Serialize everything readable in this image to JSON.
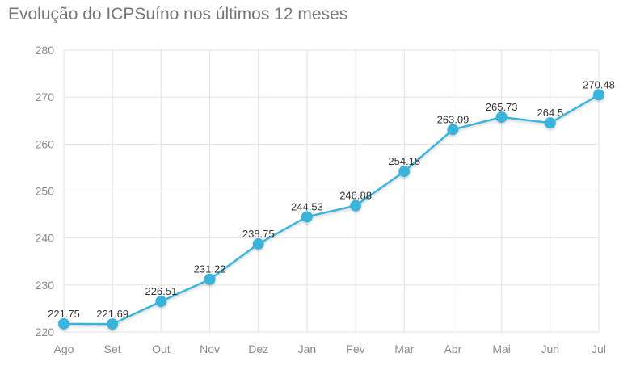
{
  "chart_data": {
    "type": "line",
    "title": "Evolução do ICPSuíno nos últimos 12 meses",
    "xlabel": "",
    "ylabel": "",
    "categories": [
      "Ago",
      "Set",
      "Out",
      "Nov",
      "Dez",
      "Jan",
      "Fev",
      "Mar",
      "Abr",
      "Mai",
      "Jun",
      "Jul"
    ],
    "series": [
      {
        "name": "ICPSuíno",
        "values": [
          221.75,
          221.69,
          226.51,
          231.22,
          238.75,
          244.53,
          246.88,
          254.18,
          263.09,
          265.73,
          264.5,
          270.48
        ],
        "labels": [
          "221.75",
          "221.69",
          "226.51",
          "231.22",
          "238.75",
          "244.53",
          "246.88",
          "254.18",
          "263.09",
          "265.73",
          "264.5",
          "270.48"
        ],
        "color": "#3ab4dc"
      }
    ],
    "ylim": [
      220,
      280
    ],
    "yticks": [
      "220",
      "230",
      "240",
      "250",
      "260",
      "270",
      "280"
    ],
    "grid": true,
    "legend": "none"
  },
  "colors": {
    "line": "#3ab4dc",
    "grid": "#e2e2e2",
    "tick_text": "#8a8a8a",
    "title_text": "#777777"
  }
}
